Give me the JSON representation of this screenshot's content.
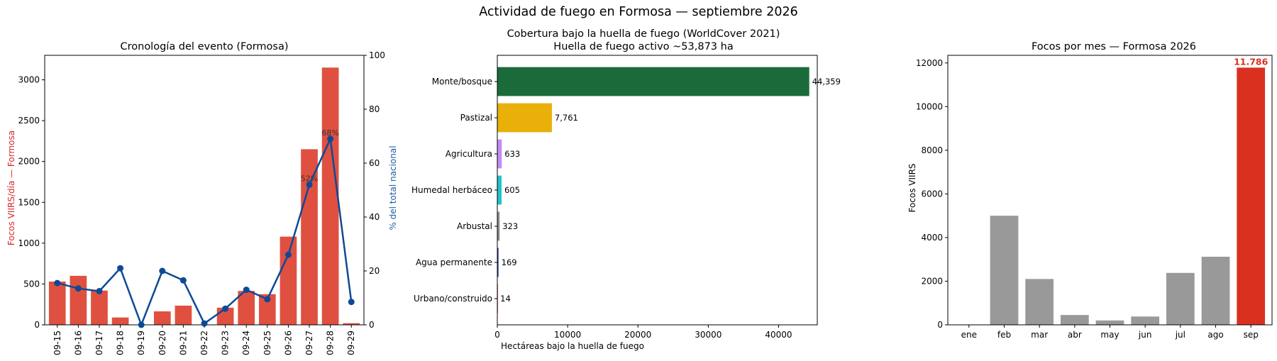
{
  "suptitle": "Actividad de fuego en Formosa — septiembre 2026",
  "chart_data": [
    {
      "type": "bar+line",
      "title": "Cronología del evento (Formosa)",
      "ylabel": "Focos VIIRS/día — Formosa",
      "ylabel_right": "% del total nacional",
      "ylim": [
        0,
        3300
      ],
      "ylim_right": [
        0,
        100
      ],
      "yticks": [
        0,
        500,
        1000,
        1500,
        2000,
        2500,
        3000
      ],
      "yticks_right": [
        0,
        20,
        40,
        60,
        80,
        100
      ],
      "categories": [
        "09-15",
        "09-16",
        "09-17",
        "09-18",
        "09-19",
        "09-20",
        "09-21",
        "09-22",
        "09-23",
        "09-24",
        "09-25",
        "09-26",
        "09-27",
        "09-28",
        "09-29"
      ],
      "bar_values": [
        530,
        600,
        420,
        90,
        0,
        165,
        235,
        0,
        210,
        415,
        375,
        1080,
        2150,
        3150,
        20
      ],
      "line_values": [
        15.5,
        13.5,
        12.5,
        21,
        0,
        20,
        16.5,
        0.5,
        6,
        13,
        9.5,
        26,
        52,
        69,
        8.5
      ],
      "annotations": [
        {
          "index": 12,
          "text": "52%"
        },
        {
          "index": 13,
          "text": "68%"
        }
      ],
      "bar_color": "#e05040",
      "line_color": "#0d4a96"
    },
    {
      "type": "barh",
      "title_lines": [
        "Cobertura bajo la huella de fuego (WorldCover 2021)",
        "Huella de fuego activo ~53,873 ha"
      ],
      "xlabel": "Hectáreas bajo la huella de fuego",
      "xlim": [
        0,
        45500
      ],
      "xticks": [
        0,
        10000,
        20000,
        30000,
        40000
      ],
      "categories": [
        "Monte/bosque",
        "Pastizal",
        "Agricultura",
        "Humedal herbáceo",
        "Arbustal",
        "Agua permanente",
        "Urbano/construido"
      ],
      "values": [
        44359,
        7761,
        633,
        605,
        323,
        169,
        14
      ],
      "value_labels": [
        "44,359",
        "7,761",
        "633",
        "605",
        "323",
        "169",
        "14"
      ],
      "colors": [
        "#1b6b3a",
        "#e8b009",
        "#c58cf5",
        "#22c3c9",
        "#8a8a8a",
        "#2a3a8a",
        "#d62728"
      ]
    },
    {
      "type": "bar",
      "title": "Focos por mes — Formosa 2026",
      "ylabel": "Focos VIIRS",
      "ylim": [
        0,
        12350
      ],
      "yticks": [
        0,
        2000,
        4000,
        6000,
        8000,
        10000,
        12000
      ],
      "categories": [
        "ene",
        "feb",
        "mar",
        "abr",
        "may",
        "jun",
        "jul",
        "ago",
        "sep"
      ],
      "values": [
        0,
        5000,
        2100,
        450,
        200,
        380,
        2380,
        3120,
        11786
      ],
      "highlight_label": "11.786",
      "bar_color": "#999999",
      "highlight_color": "#d93020"
    }
  ]
}
